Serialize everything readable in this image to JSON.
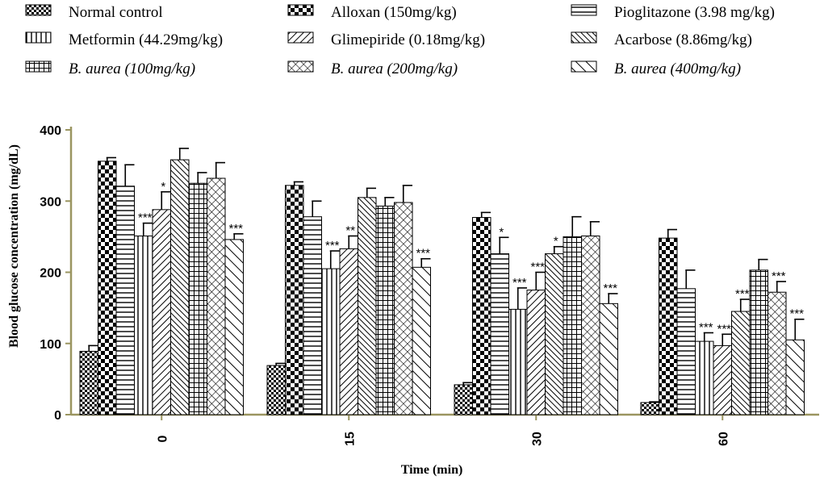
{
  "chart_data": {
    "type": "bar",
    "title": "",
    "xlabel": "Time (min)",
    "ylabel": "Blood glucose concentration (mg/dL)",
    "ylim": [
      0,
      400
    ],
    "yticks": [
      0,
      100,
      200,
      300,
      400
    ],
    "categories": [
      "0",
      "15",
      "30",
      "60"
    ],
    "series": [
      {
        "name": "Normal control",
        "italic_part": "",
        "pattern": "check",
        "values": [
          89,
          69,
          42,
          17
        ],
        "errors": [
          8,
          3,
          3,
          1
        ],
        "sig": [
          "",
          "",
          "",
          ""
        ]
      },
      {
        "name": "Alloxan (150mg/kg)",
        "italic_part": "",
        "pattern": "bigcheck",
        "values": [
          356,
          322,
          277,
          248
        ],
        "errors": [
          5,
          5,
          7,
          12
        ],
        "sig": [
          "",
          "",
          "",
          ""
        ]
      },
      {
        "name": "Pioglitazone (3.98 mg/kg)",
        "italic_part": "",
        "pattern": "hlines",
        "values": [
          321,
          278,
          226,
          177
        ],
        "errors": [
          30,
          22,
          23,
          26
        ],
        "sig": [
          "",
          "",
          "*",
          ""
        ]
      },
      {
        "name": "Metformin (44.29mg/kg)",
        "italic_part": "",
        "pattern": "vlines",
        "values": [
          251,
          205,
          148,
          103
        ],
        "errors": [
          18,
          25,
          30,
          12
        ],
        "sig": [
          "***",
          "***",
          "***",
          "***"
        ]
      },
      {
        "name": "Glimepiride (0.18mg/kg)",
        "italic_part": "",
        "pattern": "diagfwd",
        "values": [
          288,
          233,
          175,
          97
        ],
        "errors": [
          25,
          18,
          25,
          16
        ],
        "sig": [
          "*",
          "**",
          "***",
          "***"
        ]
      },
      {
        "name": "Acarbose (8.86mg/kg)",
        "italic_part": "",
        "pattern": "diagback",
        "values": [
          358,
          305,
          226,
          145
        ],
        "errors": [
          16,
          13,
          10,
          17
        ],
        "sig": [
          "",
          "",
          "*",
          "***"
        ]
      },
      {
        "name": "(100mg/kg)",
        "italic_part": "B. aurea",
        "pattern": "grid",
        "values": [
          325,
          293,
          250,
          203
        ],
        "errors": [
          15,
          12,
          28,
          15
        ],
        "sig": [
          "",
          "",
          "",
          ""
        ]
      },
      {
        "name": "(200mg/kg)",
        "italic_part": "B. aurea",
        "pattern": "crosshatch",
        "values": [
          332,
          298,
          251,
          172
        ],
        "errors": [
          22,
          24,
          20,
          15
        ],
        "sig": [
          "",
          "",
          "",
          "***"
        ]
      },
      {
        "name": "(400mg/kg)",
        "italic_part": "B. aurea",
        "pattern": "diagback2",
        "values": [
          246,
          207,
          156,
          105
        ],
        "errors": [
          8,
          12,
          14,
          29
        ],
        "sig": [
          "***",
          "***",
          "***",
          "***"
        ]
      }
    ],
    "legend_position": "top",
    "legend_columns": 3
  }
}
